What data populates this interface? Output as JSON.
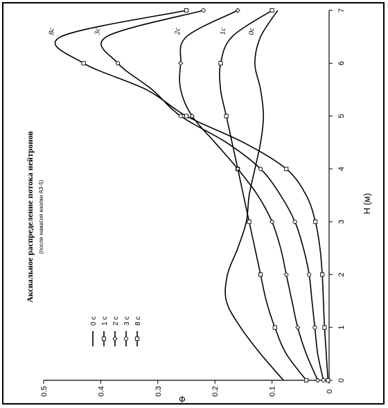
{
  "chart_data": {
    "type": "line",
    "title": "Аксиальное распределение потока нейтронов",
    "subtitle": "(после нажатия кнопки АЗ-5)",
    "xlabel": "H (м)",
    "ylabel": "Ф",
    "xlim": [
      0,
      7
    ],
    "ylim": [
      0,
      0.5
    ],
    "x_ticks": [
      "0",
      "1",
      "2",
      "3",
      "4",
      "5",
      "6",
      "7"
    ],
    "y_ticks": [
      "0",
      "0.1",
      "0.2",
      "0.3",
      "0.4",
      "0.5"
    ],
    "orientation": "rotated 90° counter-clockwise",
    "grid": false,
    "legend_position": "bottom-left",
    "series": [
      {
        "name": "0 с",
        "marker": "none",
        "annotation": "0с",
        "x": [
          0,
          0.5,
          1,
          1.5,
          2,
          2.5,
          3,
          3.5,
          4,
          4.5,
          5,
          5.5,
          6,
          6.5,
          7
        ],
        "y": [
          0.08,
          0.12,
          0.155,
          0.18,
          0.178,
          0.16,
          0.145,
          0.14,
          0.13,
          0.12,
          0.115,
          0.12,
          0.13,
          0.12,
          0.09
        ]
      },
      {
        "name": "1 с",
        "marker": "square",
        "annotation": "1с",
        "x": [
          0,
          0.5,
          1,
          1.5,
          2,
          2.5,
          3,
          3.5,
          4,
          4.5,
          5,
          5.5,
          6,
          6.5,
          7
        ],
        "y": [
          0.04,
          0.075,
          0.095,
          0.11,
          0.12,
          0.13,
          0.14,
          0.15,
          0.16,
          0.17,
          0.18,
          0.19,
          0.19,
          0.17,
          0.1
        ]
      },
      {
        "name": "2 с",
        "marker": "diamond",
        "annotation": "2с",
        "x": [
          0,
          0.5,
          1,
          1.5,
          2,
          2.5,
          3,
          3.5,
          4,
          4.5,
          5,
          5.5,
          6,
          6.5,
          7
        ],
        "y": [
          0.02,
          0.04,
          0.055,
          0.065,
          0.075,
          0.085,
          0.1,
          0.125,
          0.16,
          0.2,
          0.24,
          0.26,
          0.26,
          0.25,
          0.16
        ]
      },
      {
        "name": "3 с",
        "marker": "circle",
        "annotation": "3с",
        "x": [
          0,
          0.5,
          1,
          1.5,
          2,
          2.5,
          3,
          3.5,
          4,
          4.5,
          5,
          5.5,
          6,
          6.5,
          7
        ],
        "y": [
          0.01,
          0.02,
          0.025,
          0.03,
          0.035,
          0.045,
          0.06,
          0.085,
          0.12,
          0.18,
          0.26,
          0.31,
          0.37,
          0.39,
          0.22
        ]
      },
      {
        "name": "8 с",
        "marker": "square",
        "annotation": "8с",
        "x": [
          0,
          0.5,
          1,
          1.5,
          2,
          2.5,
          3,
          3.5,
          4,
          4.5,
          5,
          5.5,
          6,
          6.5,
          7
        ],
        "y": [
          0.002,
          0.005,
          0.008,
          0.01,
          0.012,
          0.016,
          0.024,
          0.04,
          0.075,
          0.15,
          0.25,
          0.32,
          0.43,
          0.47,
          0.25
        ]
      }
    ]
  }
}
